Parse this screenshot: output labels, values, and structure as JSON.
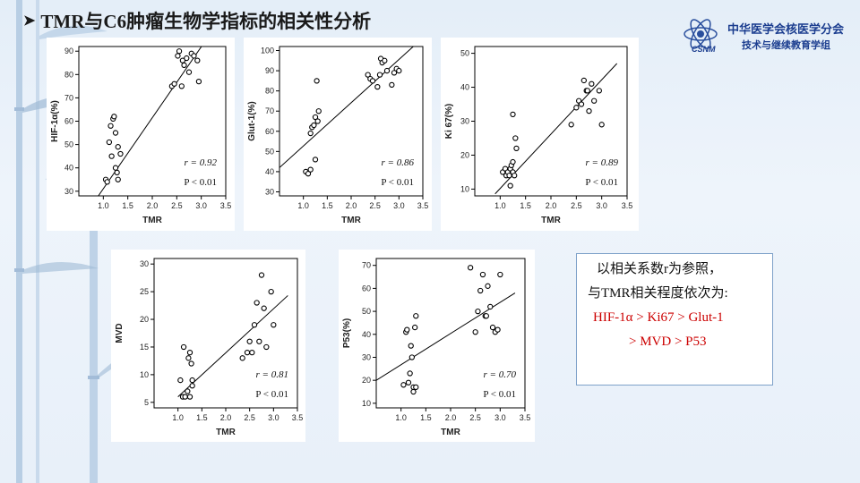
{
  "slide": {
    "title": "TMR与C6肿瘤生物学指标的相关性分析",
    "logo": {
      "org": "中华医学会核医学分会",
      "dept": "技术与继续教育学组",
      "abbr": "CSNM"
    },
    "note": {
      "line1": "以相关系数r为参照，",
      "line2": "与TMR相关程度依次为:",
      "line3": "HIF-1α > Ki67  > Glut-1",
      "line4": "> MVD > P53"
    }
  },
  "colors": {
    "marker_stroke": "#000000",
    "fit_line": "#000000",
    "highlight": "#cc0000",
    "note_border": "#7ea1c9"
  },
  "chart_data": [
    {
      "type": "scatter",
      "xlabel": "TMR",
      "ylabel": "HIF-1α(%)",
      "xlim": [
        0.5,
        3.5
      ],
      "ylim": [
        28,
        92
      ],
      "xticks": [
        1.0,
        1.5,
        2.0,
        2.5,
        3.0,
        3.5
      ],
      "yticks": [
        30,
        40,
        50,
        60,
        70,
        80,
        90
      ],
      "xtick_labels": [
        "1.0",
        "1.5",
        "2.0",
        "2.5",
        "3.0",
        "3.5"
      ],
      "ytick_labels": [
        "30",
        "40",
        "50",
        "60",
        "70",
        "80",
        "90"
      ],
      "r_text": "r = 0.92",
      "p_text": "P < 0.01",
      "fit": [
        [
          0.8,
          25
        ],
        [
          3.3,
          101
        ]
      ],
      "points": [
        [
          1.05,
          35
        ],
        [
          1.08,
          34
        ],
        [
          1.12,
          51
        ],
        [
          1.15,
          58
        ],
        [
          1.17,
          45
        ],
        [
          1.2,
          61
        ],
        [
          1.22,
          62
        ],
        [
          1.25,
          40
        ],
        [
          1.25,
          55
        ],
        [
          1.28,
          38
        ],
        [
          1.3,
          35
        ],
        [
          1.3,
          49
        ],
        [
          1.35,
          46
        ],
        [
          2.4,
          75
        ],
        [
          2.45,
          76
        ],
        [
          2.52,
          88
        ],
        [
          2.55,
          90
        ],
        [
          2.6,
          75
        ],
        [
          2.62,
          86
        ],
        [
          2.65,
          84
        ],
        [
          2.7,
          87
        ],
        [
          2.75,
          81
        ],
        [
          2.8,
          89
        ],
        [
          2.85,
          88
        ],
        [
          2.95,
          77
        ],
        [
          2.92,
          86
        ]
      ]
    },
    {
      "type": "scatter",
      "xlabel": "TMR",
      "ylabel": "Glut-1(%)",
      "xlim": [
        0.5,
        3.5
      ],
      "ylim": [
        28,
        102
      ],
      "xticks": [
        1.0,
        1.5,
        2.0,
        2.5,
        3.0,
        3.5
      ],
      "yticks": [
        30,
        40,
        50,
        60,
        70,
        80,
        90,
        100
      ],
      "xtick_labels": [
        "1.0",
        "1.5",
        "2.0",
        "2.5",
        "3.0",
        "3.5"
      ],
      "ytick_labels": [
        "30",
        "40",
        "50",
        "60",
        "70",
        "80",
        "90",
        "100"
      ],
      "r_text": "r = 0.86",
      "p_text": "P < 0.01",
      "fit": [
        [
          0.5,
          42
        ],
        [
          3.3,
          102
        ]
      ],
      "points": [
        [
          1.05,
          40
        ],
        [
          1.1,
          39
        ],
        [
          1.15,
          41
        ],
        [
          1.15,
          59
        ],
        [
          1.18,
          62
        ],
        [
          1.22,
          63
        ],
        [
          1.25,
          46
        ],
        [
          1.25,
          67
        ],
        [
          1.28,
          85
        ],
        [
          1.3,
          65
        ],
        [
          1.32,
          70
        ],
        [
          2.35,
          88
        ],
        [
          2.4,
          86
        ],
        [
          2.45,
          85
        ],
        [
          2.55,
          82
        ],
        [
          2.6,
          88
        ],
        [
          2.62,
          96
        ],
        [
          2.65,
          94
        ],
        [
          2.7,
          95
        ],
        [
          2.75,
          90
        ],
        [
          2.85,
          83
        ],
        [
          2.9,
          89
        ],
        [
          2.95,
          91
        ],
        [
          3.0,
          90
        ]
      ]
    },
    {
      "type": "scatter",
      "xlabel": "TMR",
      "ylabel": "Ki 67(%)",
      "xlim": [
        0.5,
        3.5
      ],
      "ylim": [
        8,
        52
      ],
      "xticks": [
        1.0,
        1.5,
        2.0,
        2.5,
        3.0,
        3.5
      ],
      "yticks": [
        10,
        20,
        30,
        40,
        50
      ],
      "xtick_labels": [
        "1.0",
        "1.5",
        "2.0",
        "2.5",
        "3.0",
        "3.5"
      ],
      "ytick_labels": [
        "10",
        "20",
        "30",
        "40",
        "50"
      ],
      "r_text": "r = 0.89",
      "p_text": "P < 0.01",
      "fit": [
        [
          0.9,
          8.6
        ],
        [
          3.3,
          47
        ]
      ],
      "points": [
        [
          1.05,
          15
        ],
        [
          1.1,
          16
        ],
        [
          1.12,
          14
        ],
        [
          1.15,
          15
        ],
        [
          1.18,
          14
        ],
        [
          1.2,
          11
        ],
        [
          1.2,
          16
        ],
        [
          1.22,
          17
        ],
        [
          1.25,
          15
        ],
        [
          1.25,
          18
        ],
        [
          1.25,
          32
        ],
        [
          1.28,
          14
        ],
        [
          1.3,
          25
        ],
        [
          1.32,
          22
        ],
        [
          2.4,
          29
        ],
        [
          2.5,
          34
        ],
        [
          2.55,
          36
        ],
        [
          2.6,
          35
        ],
        [
          2.65,
          42
        ],
        [
          2.7,
          39
        ],
        [
          2.72,
          39
        ],
        [
          2.75,
          33
        ],
        [
          2.8,
          41
        ],
        [
          2.85,
          36
        ],
        [
          2.95,
          39
        ],
        [
          3.0,
          29
        ]
      ]
    },
    {
      "type": "scatter",
      "xlabel": "TMR",
      "ylabel": "MVD",
      "xlim": [
        0.5,
        3.5
      ],
      "ylim": [
        4,
        31
      ],
      "xticks": [
        1.0,
        1.5,
        2.0,
        2.5,
        3.0,
        3.5
      ],
      "yticks": [
        5,
        10,
        15,
        20,
        25,
        30
      ],
      "xtick_labels": [
        "1.0",
        "1.5",
        "2.0",
        "2.5",
        "3.0",
        "3.5"
      ],
      "ytick_labels": [
        "5",
        "10",
        "15",
        "20",
        "25",
        "30"
      ],
      "r_text": "r = 0.81",
      "p_text": "P < 0.01",
      "fit": [
        [
          1.0,
          6
        ],
        [
          3.3,
          24.3
        ]
      ],
      "points": [
        [
          1.05,
          9
        ],
        [
          1.1,
          6
        ],
        [
          1.12,
          15
        ],
        [
          1.15,
          6
        ],
        [
          1.2,
          7
        ],
        [
          1.22,
          13
        ],
        [
          1.25,
          6
        ],
        [
          1.25,
          14
        ],
        [
          1.28,
          12
        ],
        [
          1.3,
          8
        ],
        [
          1.3,
          9
        ],
        [
          2.35,
          13
        ],
        [
          2.45,
          14
        ],
        [
          2.5,
          16
        ],
        [
          2.55,
          14
        ],
        [
          2.6,
          19
        ],
        [
          2.65,
          23
        ],
        [
          2.7,
          16
        ],
        [
          2.75,
          28
        ],
        [
          2.8,
          22
        ],
        [
          2.85,
          15
        ],
        [
          2.95,
          25
        ],
        [
          3.0,
          19
        ]
      ]
    },
    {
      "type": "scatter",
      "xlabel": "TMR",
      "ylabel": "P53(%)",
      "xlim": [
        0.5,
        3.5
      ],
      "ylim": [
        8,
        73
      ],
      "xticks": [
        1.0,
        1.5,
        2.0,
        2.5,
        3.0,
        3.5
      ],
      "yticks": [
        10,
        20,
        30,
        40,
        50,
        60,
        70
      ],
      "xtick_labels": [
        "1.0",
        "1.5",
        "2.0",
        "2.5",
        "3.0",
        "3.5"
      ],
      "ytick_labels": [
        "10",
        "20",
        "30",
        "40",
        "50",
        "60",
        "70"
      ],
      "r_text": "r = 0.70",
      "p_text": "P < 0.01",
      "fit": [
        [
          0.5,
          20
        ],
        [
          3.3,
          58
        ]
      ],
      "points": [
        [
          1.05,
          18
        ],
        [
          1.1,
          41
        ],
        [
          1.12,
          42
        ],
        [
          1.15,
          19
        ],
        [
          1.18,
          23
        ],
        [
          1.2,
          35
        ],
        [
          1.22,
          30
        ],
        [
          1.25,
          15
        ],
        [
          1.25,
          17
        ],
        [
          1.28,
          43
        ],
        [
          1.3,
          48
        ],
        [
          1.3,
          17
        ],
        [
          2.4,
          69
        ],
        [
          2.5,
          41
        ],
        [
          2.55,
          50
        ],
        [
          2.6,
          59
        ],
        [
          2.65,
          66
        ],
        [
          2.7,
          48
        ],
        [
          2.72,
          48
        ],
        [
          2.75,
          61
        ],
        [
          2.8,
          52
        ],
        [
          2.85,
          43
        ],
        [
          2.9,
          41
        ],
        [
          2.95,
          42
        ],
        [
          3.0,
          66
        ]
      ]
    }
  ]
}
